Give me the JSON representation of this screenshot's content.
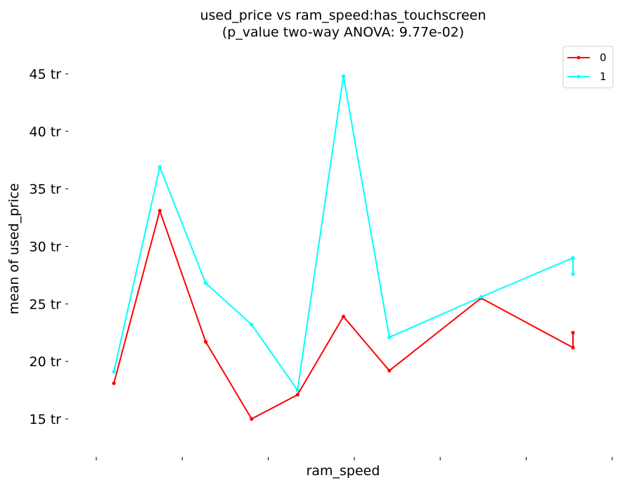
{
  "chart_data": {
    "type": "line",
    "title_line1": "used_price vs ram_speed:has_touchscreen",
    "title_line2": "(p_value two-way ANOVA: 9.77e-02)",
    "xlabel": "ram_speed",
    "ylabel": "mean of used_price",
    "y_tick_values": [
      15,
      20,
      25,
      30,
      35,
      40,
      45
    ],
    "y_tick_labels": [
      "15 tr",
      "20 tr",
      "25 tr",
      "30 tr",
      "35 tr",
      "40 tr",
      "45 tr"
    ],
    "ylim": [
      12.2,
      48.0
    ],
    "x_tick_count": 7,
    "legend_position": "top-right",
    "series": [
      {
        "name": "0",
        "color": "#ff0000",
        "points": [
          [
            0,
            18.1
          ],
          [
            1,
            33.1
          ],
          [
            2,
            21.7
          ],
          [
            3,
            15.0
          ],
          [
            4,
            17.1
          ],
          [
            5,
            23.9
          ],
          [
            6,
            19.2
          ],
          [
            8,
            25.5
          ],
          [
            10,
            21.2
          ],
          [
            10,
            22.5
          ]
        ]
      },
      {
        "name": "1",
        "color": "#00ffff",
        "points": [
          [
            0,
            19.1
          ],
          [
            1,
            36.9
          ],
          [
            2,
            26.8
          ],
          [
            3,
            23.2
          ],
          [
            4,
            17.5
          ],
          [
            5,
            44.8
          ],
          [
            6,
            22.1
          ],
          [
            8,
            25.6
          ],
          [
            10,
            29.0
          ],
          [
            10,
            27.6
          ]
        ]
      }
    ]
  }
}
